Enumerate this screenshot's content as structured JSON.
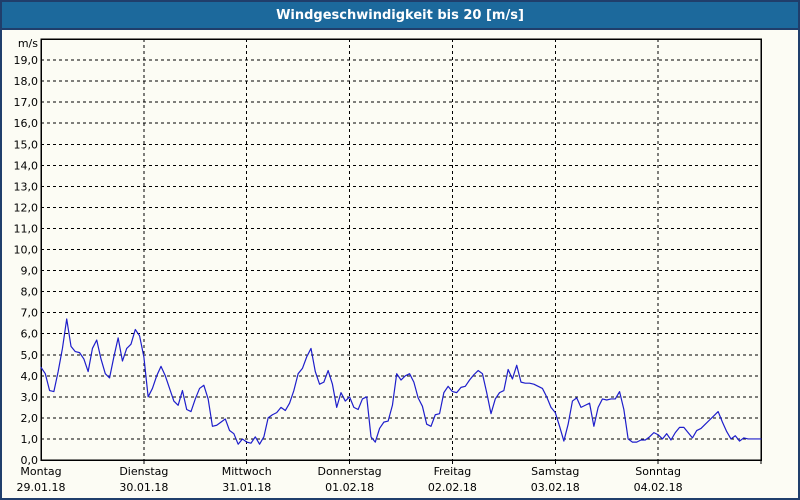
{
  "window": {
    "title": "Windgeschwindigkeit bis 20 [m/s]"
  },
  "colors": {
    "titlebar": "#1c699c",
    "frame": "#203e6b",
    "background": "#fcfcf4",
    "line": "#1e1ecb",
    "grid": "#000000",
    "text": "#000000"
  },
  "chart_data": {
    "type": "line",
    "title": "Windgeschwindigkeit bis 20 [m/s]",
    "unit_label": "m/s",
    "ylim": [
      0,
      20
    ],
    "ytick_step": 1,
    "grid": true,
    "grid_style": "dashed",
    "legend": "none",
    "ytick_labels": [
      "19,0",
      "18,0",
      "17,0",
      "16,0",
      "15,0",
      "14,0",
      "13,0",
      "12,0",
      "11,0",
      "10,0",
      "9,0",
      "8,0",
      "7,0",
      "6,0",
      "5,0",
      "4,0",
      "3,0",
      "2,0",
      "1,0",
      "0,0"
    ],
    "x_days": [
      {
        "name": "Montag",
        "date": "29.01.18"
      },
      {
        "name": "Dienstag",
        "date": "30.01.18"
      },
      {
        "name": "Mittwoch",
        "date": "31.01.18"
      },
      {
        "name": "Donnerstag",
        "date": "01.02.18"
      },
      {
        "name": "Freitag",
        "date": "02.02.18"
      },
      {
        "name": "Samstag",
        "date": "03.02.18"
      },
      {
        "name": "Sonntag",
        "date": "04.02.18"
      }
    ],
    "series": [
      {
        "name": "Windgeschwindigkeit",
        "unit": "m/s",
        "sampling": "hourly",
        "values": [
          4.4,
          4.1,
          3.3,
          3.25,
          4.2,
          5.3,
          6.7,
          5.4,
          5.15,
          5.1,
          4.8,
          4.2,
          5.3,
          5.7,
          4.8,
          4.1,
          3.9,
          4.9,
          5.8,
          4.7,
          5.3,
          5.5,
          6.2,
          5.9,
          4.9,
          3.0,
          3.4,
          4.0,
          4.45,
          4.0,
          3.4,
          2.8,
          2.6,
          3.3,
          2.4,
          2.3,
          2.9,
          3.4,
          3.55,
          2.9,
          1.6,
          1.65,
          1.8,
          1.95,
          1.4,
          1.25,
          0.75,
          1.0,
          0.85,
          0.8,
          1.1,
          0.75,
          1.1,
          2.0,
          2.15,
          2.25,
          2.5,
          2.35,
          2.7,
          3.3,
          4.1,
          4.35,
          4.9,
          5.3,
          4.2,
          3.6,
          3.7,
          4.25,
          3.6,
          2.5,
          3.2,
          2.8,
          3.0,
          2.5,
          2.4,
          2.9,
          3.0,
          1.1,
          0.85,
          1.5,
          1.8,
          1.85,
          2.6,
          4.1,
          3.8,
          4.0,
          4.1,
          3.7,
          2.95,
          2.55,
          1.7,
          1.6,
          2.15,
          2.2,
          3.2,
          3.5,
          3.25,
          3.2,
          3.45,
          3.5,
          3.8,
          4.05,
          4.25,
          4.1,
          3.2,
          2.2,
          2.9,
          3.2,
          3.3,
          4.3,
          3.85,
          4.5,
          3.7,
          3.65,
          3.65,
          3.6,
          3.5,
          3.4,
          3.0,
          2.5,
          2.25,
          1.6,
          0.9,
          1.7,
          2.8,
          2.95,
          2.5,
          2.6,
          2.7,
          1.6,
          2.5,
          2.9,
          2.85,
          2.9,
          2.9,
          3.25,
          2.4,
          1.0,
          0.85,
          0.85,
          0.95,
          0.95,
          1.1,
          1.3,
          1.2,
          1.0,
          1.25,
          0.95,
          1.3,
          1.55,
          1.55,
          1.3,
          1.05,
          1.4,
          1.5,
          1.7,
          1.9,
          2.1,
          2.3,
          1.8,
          1.35,
          1.0,
          1.15,
          0.9,
          1.05,
          1.0,
          1.0,
          1.0,
          1.0
        ]
      }
    ]
  }
}
